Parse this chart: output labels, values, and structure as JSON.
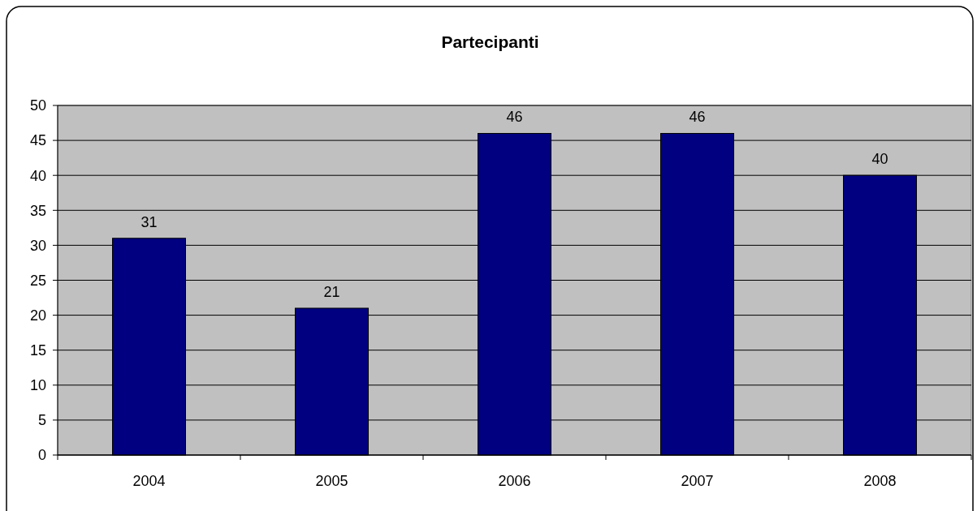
{
  "chart_data": {
    "type": "bar",
    "title": "Partecipanti",
    "categories": [
      "2004",
      "2005",
      "2006",
      "2007",
      "2008"
    ],
    "values": [
      31,
      21,
      46,
      46,
      40
    ],
    "color": "#000080",
    "ylim": [
      0,
      50
    ],
    "yticks": [
      0,
      5,
      10,
      15,
      20,
      25,
      30,
      35,
      40,
      45,
      50
    ],
    "grid": "y",
    "data_labels": true
  }
}
